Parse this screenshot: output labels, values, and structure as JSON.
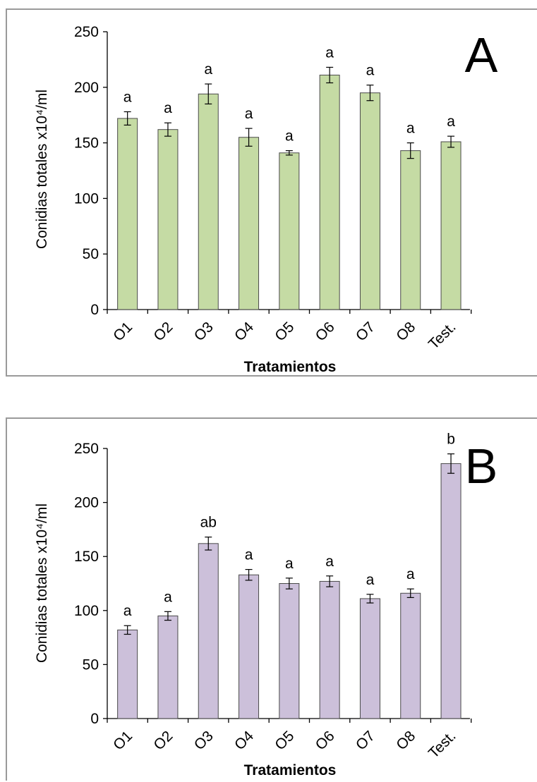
{
  "chart_data": [
    {
      "type": "bar",
      "panel_label": "A",
      "categories": [
        "O1",
        "O2",
        "O3",
        "O4",
        "O5",
        "O6",
        "O7",
        "O8",
        "Test."
      ],
      "values": [
        172,
        162,
        194,
        155,
        141,
        211,
        195,
        143,
        151
      ],
      "errors": [
        6,
        6,
        9,
        8,
        2,
        7,
        7,
        7,
        5
      ],
      "significance": [
        "a",
        "a",
        "a",
        "a",
        "a",
        "a",
        "a",
        "a",
        "a"
      ],
      "bar_color": "#c5dba4",
      "bar_edge_color": "#4a4a4a",
      "xlabel": "Tratamientos",
      "ylabel": "Conidias totales x10⁴/ml",
      "ylim": [
        0,
        250
      ],
      "yticks": [
        0,
        50,
        100,
        150,
        200,
        250
      ],
      "grid": false,
      "legend": "none"
    },
    {
      "type": "bar",
      "panel_label": "B",
      "categories": [
        "O1",
        "O2",
        "O3",
        "O4",
        "O5",
        "O6",
        "O7",
        "O8",
        "Test."
      ],
      "values": [
        82,
        95,
        162,
        133,
        125,
        127,
        111,
        116,
        236
      ],
      "errors": [
        4,
        4,
        6,
        5,
        5,
        5,
        4,
        4,
        9
      ],
      "significance": [
        "a",
        "a",
        "ab",
        "a",
        "a",
        "a",
        "a",
        "a",
        "b"
      ],
      "bar_color": "#ccc0da",
      "bar_edge_color": "#4a4a4a",
      "xlabel": "Tratamientos",
      "ylabel": "Conidias totales x10⁴/ml",
      "ylim": [
        0,
        250
      ],
      "yticks": [
        0,
        50,
        100,
        150,
        200,
        250
      ],
      "grid": false,
      "legend": "none"
    }
  ]
}
